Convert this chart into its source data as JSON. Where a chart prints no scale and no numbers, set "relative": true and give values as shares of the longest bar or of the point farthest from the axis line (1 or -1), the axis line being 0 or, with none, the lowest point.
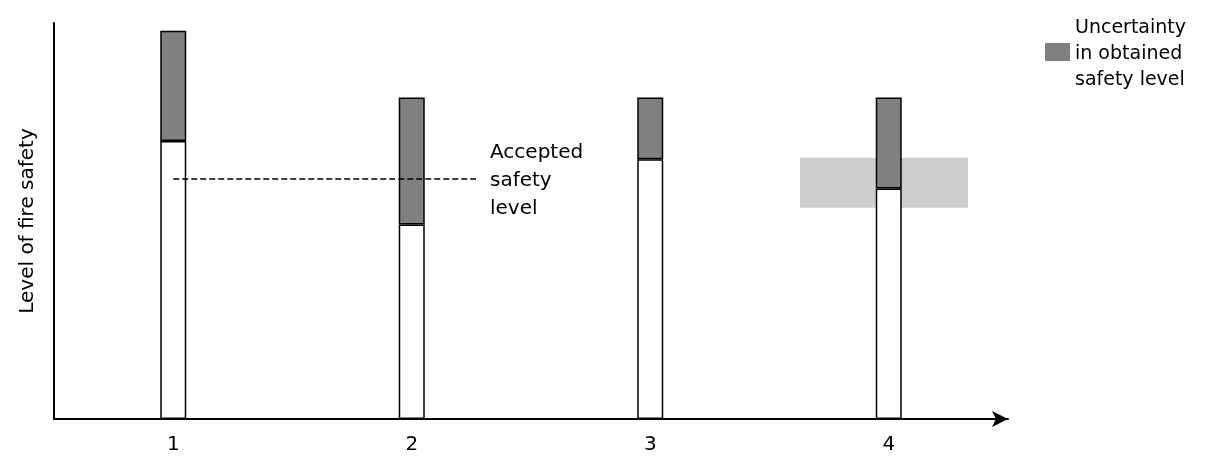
{
  "chart_data": {
    "type": "bar",
    "stacked": true,
    "relative": true,
    "ylabel": "Level of fire safety",
    "categories": [
      "1",
      "2",
      "3",
      "4"
    ],
    "series": [
      {
        "color": "#ffffff",
        "values": [
          0.716,
          0.501,
          0.669,
          0.594
        ]
      },
      {
        "name": "Uncertainty in obtained safety level",
        "color": "#808080",
        "values": [
          0.284,
          0.327,
          0.159,
          0.234
        ]
      }
    ],
    "ref_lines": [
      {
        "axis": "y",
        "value": 0.619,
        "label": "Accepted safety level",
        "line_style": "dashed",
        "color": "#000000"
      }
    ],
    "bands": [
      {
        "axis": "y",
        "from": 0.544,
        "to": 0.673,
        "color": "#c0c0c0"
      }
    ],
    "legend": "top right",
    "grid": false
  }
}
